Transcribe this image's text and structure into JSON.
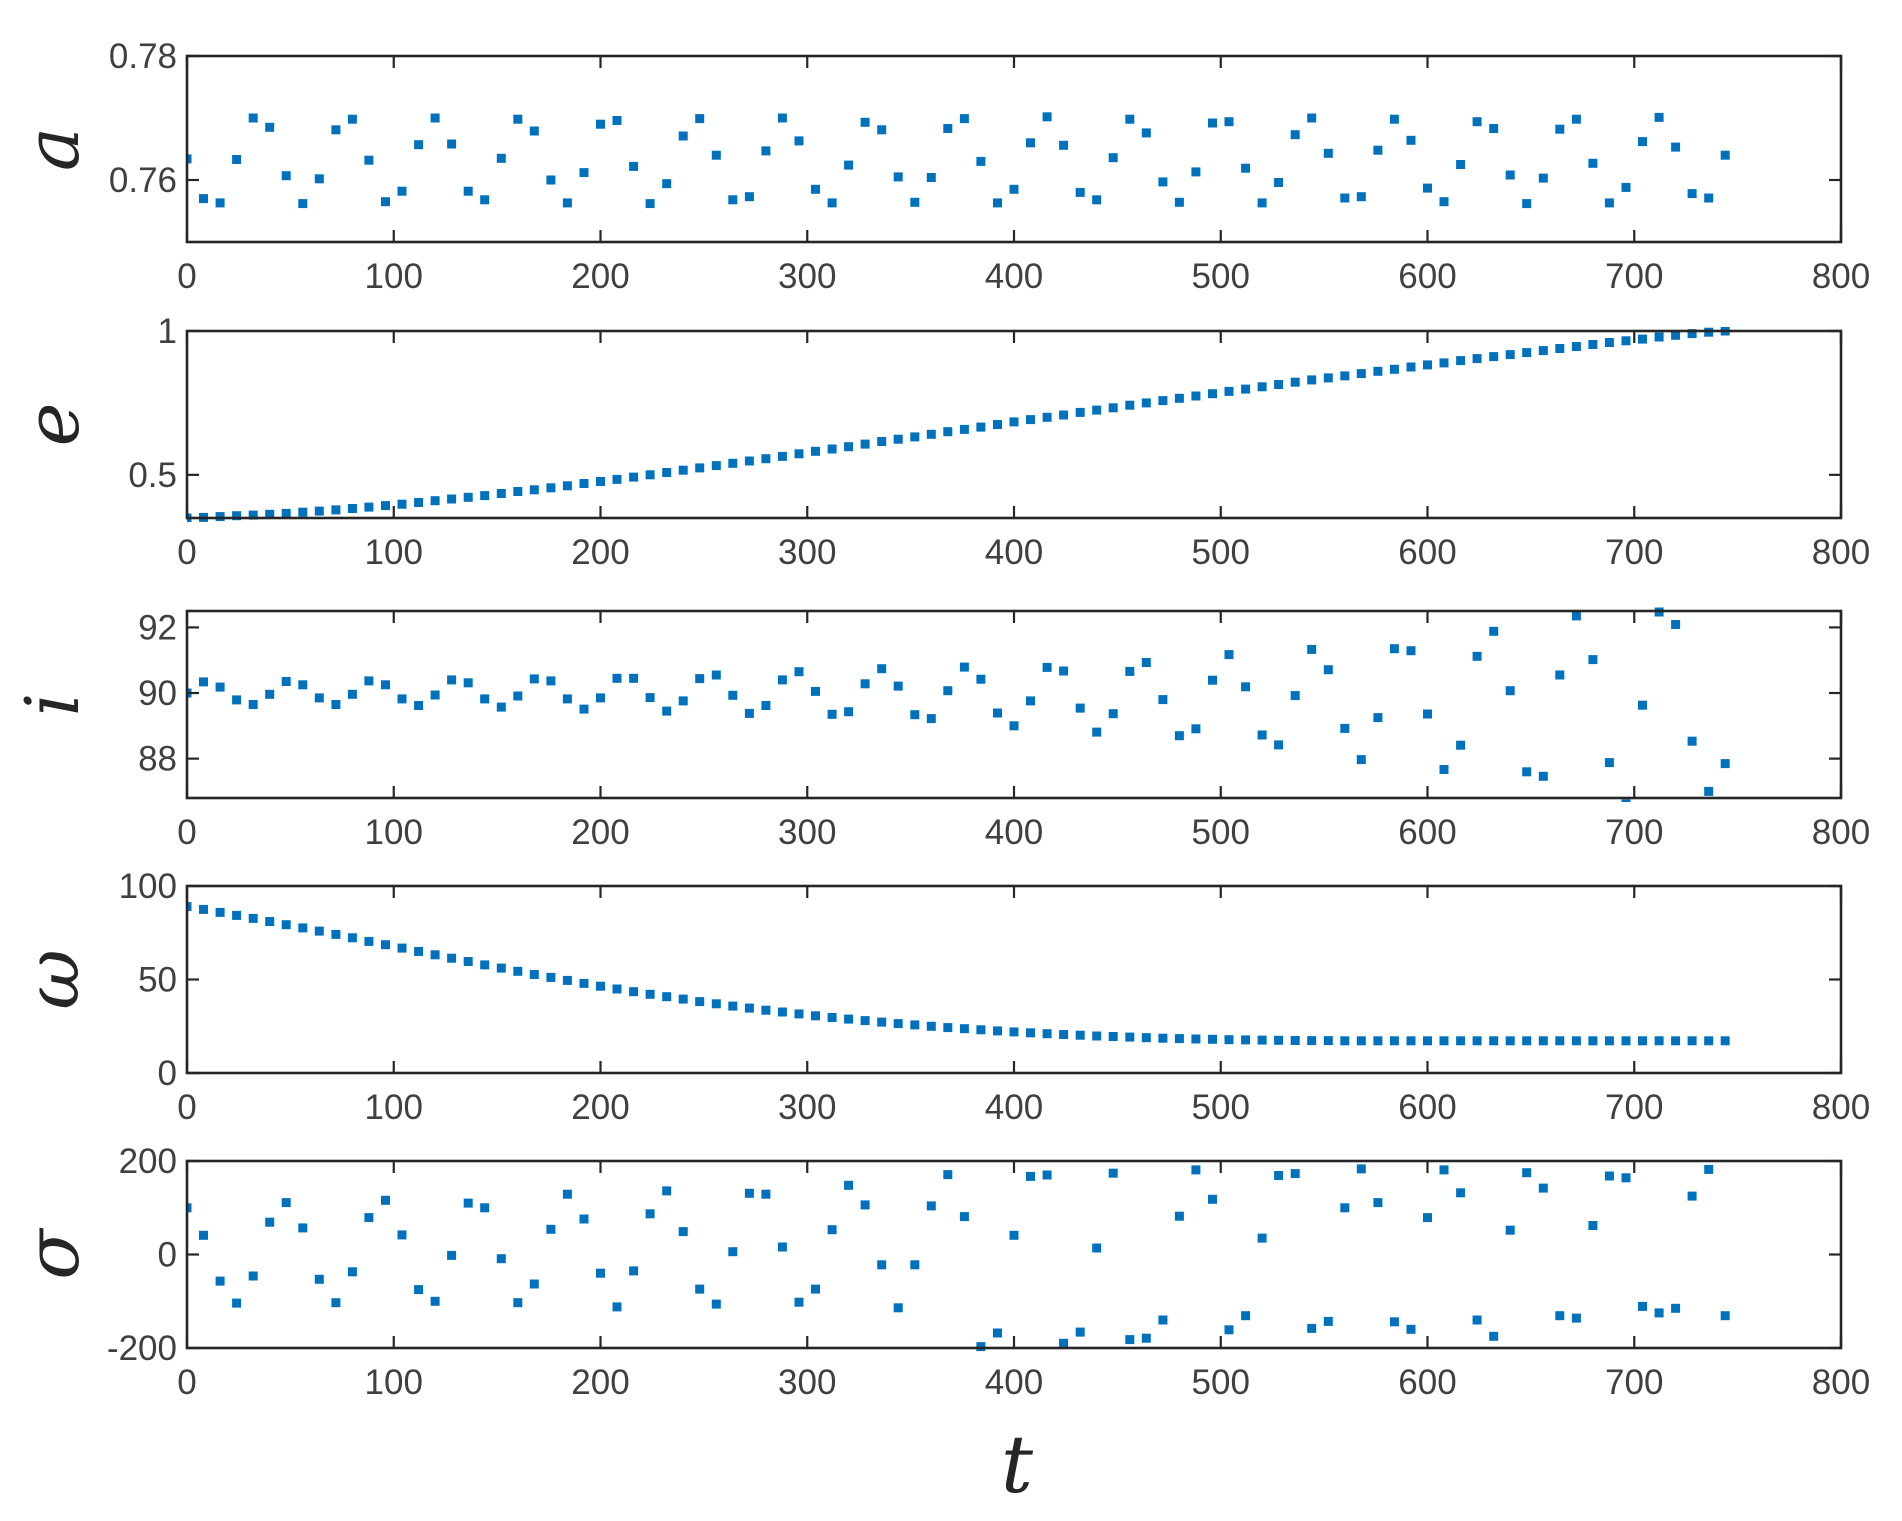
{
  "chart_data": [
    {
      "type": "scatter",
      "ylabel": "a",
      "xlim": [
        0,
        800
      ],
      "ylim": [
        0.75,
        0.78
      ],
      "xticks": [
        0,
        100,
        200,
        300,
        400,
        500,
        600,
        700,
        800
      ],
      "yticks": [
        0.76,
        0.78
      ],
      "ytick_labels": [
        "0.76",
        "0.78"
      ],
      "color": "#0072BD",
      "series": [
        {
          "x": [
            0,
            8,
            16,
            24,
            32,
            40,
            48,
            56,
            64,
            72,
            80,
            88,
            96,
            104,
            112,
            120,
            128,
            136,
            144,
            152,
            160,
            168,
            176,
            184,
            192,
            200,
            208,
            216,
            224,
            232,
            240,
            248,
            256,
            264,
            272,
            280,
            288,
            296,
            304,
            312,
            320,
            328,
            336,
            344,
            352,
            360,
            368,
            376,
            384,
            392,
            400,
            408,
            416,
            424,
            432,
            440,
            448,
            456,
            464,
            472,
            480,
            488,
            496,
            504,
            512,
            520,
            528,
            536,
            544,
            552,
            560,
            568,
            576,
            584,
            592,
            600,
            608,
            616,
            624,
            632,
            640,
            648,
            656,
            664,
            672,
            680,
            688,
            696,
            704,
            712,
            720,
            728,
            736,
            744
          ],
          "y": [
            0.7634,
            0.757,
            0.7563,
            0.7633,
            0.77,
            0.7685,
            0.7607,
            0.7562,
            0.7602,
            0.7681,
            0.7698,
            0.7632,
            0.7565,
            0.7582,
            0.7657,
            0.77,
            0.7658,
            0.7582,
            0.7568,
            0.7635,
            0.7698,
            0.7679,
            0.76,
            0.7563,
            0.7612,
            0.769,
            0.7696,
            0.7622,
            0.7562,
            0.7594,
            0.7671,
            0.7699,
            0.764,
            0.7568,
            0.7573,
            0.7647,
            0.77,
            0.7663,
            0.7585,
            0.7563,
            0.7624,
            0.7693,
            0.7681,
            0.7605,
            0.7564,
            0.7604,
            0.7683,
            0.7699,
            0.763,
            0.7563,
            0.7585,
            0.766,
            0.7702,
            0.7656,
            0.758,
            0.7568,
            0.7636,
            0.7698,
            0.7676,
            0.7597,
            0.7564,
            0.7613,
            0.7692,
            0.7694,
            0.7619,
            0.7563,
            0.7596,
            0.7673,
            0.77,
            0.7643,
            0.7571,
            0.7573,
            0.7648,
            0.7698,
            0.7664,
            0.7587,
            0.7565,
            0.7625,
            0.7694,
            0.7683,
            0.7608,
            0.7562,
            0.7603,
            0.7682,
            0.7698,
            0.7627,
            0.7563,
            0.7588,
            0.7662,
            0.7701,
            0.7653,
            0.7578,
            0.7571,
            0.764
          ]
        }
      ]
    },
    {
      "type": "scatter",
      "ylabel": "e",
      "xlim": [
        0,
        800
      ],
      "ylim": [
        0.35,
        1
      ],
      "xticks": [
        0,
        100,
        200,
        300,
        400,
        500,
        600,
        700,
        800
      ],
      "yticks": [
        0.5,
        1
      ],
      "ytick_labels": [
        "0.5",
        "1"
      ],
      "color": "#0072BD",
      "series": [
        {
          "x": [
            0,
            8,
            16,
            24,
            32,
            40,
            48,
            56,
            64,
            72,
            80,
            88,
            96,
            104,
            112,
            120,
            128,
            136,
            144,
            152,
            160,
            168,
            176,
            184,
            192,
            200,
            208,
            216,
            224,
            232,
            240,
            248,
            256,
            264,
            272,
            280,
            288,
            296,
            304,
            312,
            320,
            328,
            336,
            344,
            352,
            360,
            368,
            376,
            384,
            392,
            400,
            408,
            416,
            424,
            432,
            440,
            448,
            456,
            464,
            472,
            480,
            488,
            496,
            504,
            512,
            520,
            528,
            536,
            544,
            552,
            560,
            568,
            576,
            584,
            592,
            600,
            608,
            616,
            624,
            632,
            640,
            648,
            656,
            664,
            672,
            680,
            688,
            696,
            704,
            712,
            720,
            728,
            736,
            744
          ],
          "y": [
            0.35,
            0.352,
            0.355,
            0.358,
            0.36,
            0.363,
            0.366,
            0.37,
            0.374,
            0.378,
            0.383,
            0.388,
            0.393,
            0.398,
            0.404,
            0.41,
            0.416,
            0.422,
            0.428,
            0.435,
            0.442,
            0.448,
            0.455,
            0.462,
            0.47,
            0.477,
            0.484,
            0.492,
            0.5,
            0.508,
            0.516,
            0.524,
            0.532,
            0.54,
            0.548,
            0.556,
            0.564,
            0.573,
            0.582,
            0.59,
            0.598,
            0.607,
            0.616,
            0.624,
            0.632,
            0.641,
            0.65,
            0.658,
            0.666,
            0.675,
            0.684,
            0.692,
            0.7,
            0.708,
            0.717,
            0.725,
            0.733,
            0.742,
            0.75,
            0.758,
            0.766,
            0.774,
            0.782,
            0.79,
            0.798,
            0.806,
            0.814,
            0.822,
            0.83,
            0.837,
            0.844,
            0.852,
            0.86,
            0.867,
            0.875,
            0.882,
            0.889,
            0.897,
            0.904,
            0.911,
            0.918,
            0.925,
            0.932,
            0.939,
            0.946,
            0.953,
            0.96,
            0.966,
            0.972,
            0.979,
            0.985,
            0.991,
            0.996,
            1.0
          ]
        }
      ]
    },
    {
      "type": "scatter",
      "ylabel": "i",
      "xlim": [
        0,
        800
      ],
      "ylim": [
        86.8,
        92.5
      ],
      "xticks": [
        0,
        100,
        200,
        300,
        400,
        500,
        600,
        700,
        800
      ],
      "yticks": [
        88,
        90,
        92
      ],
      "ytick_labels": [
        "88",
        "90",
        "92"
      ],
      "color": "#0072BD",
      "series": [
        {
          "x": [
            0,
            8,
            16,
            24,
            32,
            40,
            48,
            56,
            64,
            72,
            80,
            88,
            96,
            104,
            112,
            120,
            128,
            136,
            144,
            152,
            160,
            168,
            176,
            184,
            192,
            200,
            208,
            216,
            224,
            232,
            240,
            248,
            256,
            264,
            272,
            280,
            288,
            296,
            304,
            312,
            320,
            328,
            336,
            344,
            352,
            360,
            368,
            376,
            384,
            392,
            400,
            408,
            416,
            424,
            432,
            440,
            448,
            456,
            464,
            472,
            480,
            488,
            496,
            504,
            512,
            520,
            528,
            536,
            544,
            552,
            560,
            568,
            576,
            584,
            592,
            600,
            608,
            616,
            624,
            632,
            640,
            648,
            656,
            664,
            672,
            680,
            688,
            696,
            704,
            712,
            720,
            728,
            736,
            744
          ],
          "y": [
            90.0,
            90.34,
            90.18,
            89.79,
            89.65,
            89.96,
            90.35,
            90.25,
            89.85,
            89.65,
            89.96,
            90.37,
            90.25,
            89.82,
            89.62,
            89.94,
            90.4,
            90.31,
            89.82,
            89.57,
            89.91,
            90.43,
            90.37,
            89.82,
            89.51,
            89.85,
            90.45,
            90.45,
            89.86,
            89.45,
            89.76,
            90.44,
            90.55,
            89.93,
            89.38,
            89.62,
            90.4,
            90.65,
            90.05,
            89.35,
            89.43,
            90.28,
            90.74,
            90.21,
            89.34,
            89.22,
            90.07,
            90.79,
            90.42,
            89.39,
            89.0,
            89.76,
            90.78,
            90.67,
            89.54,
            88.81,
            89.37,
            90.66,
            90.93,
            89.8,
            88.7,
            88.91,
            90.39,
            91.17,
            90.19,
            88.72,
            88.42,
            89.92,
            91.33,
            90.71,
            88.92,
            87.97,
            89.25,
            91.35,
            91.29,
            89.36,
            87.67,
            88.41,
            91.12,
            91.88,
            90.07,
            87.6,
            87.46,
            90.55,
            92.35,
            91.02,
            87.88,
            86.62,
            89.63,
            92.47,
            92.09,
            88.53,
            87.0,
            87.85
          ]
        }
      ]
    },
    {
      "type": "scatter",
      "ylabel": "ω",
      "xlim": [
        0,
        800
      ],
      "ylim": [
        0,
        100
      ],
      "xticks": [
        0,
        100,
        200,
        300,
        400,
        500,
        600,
        700,
        800
      ],
      "yticks": [
        0,
        50,
        100
      ],
      "ytick_labels": [
        "0",
        "50",
        "100"
      ],
      "color": "#0072BD",
      "series": [
        {
          "x": [
            0,
            8,
            16,
            24,
            32,
            40,
            48,
            56,
            64,
            72,
            80,
            88,
            96,
            104,
            112,
            120,
            128,
            136,
            144,
            152,
            160,
            168,
            176,
            184,
            192,
            200,
            208,
            216,
            224,
            232,
            240,
            248,
            256,
            264,
            272,
            280,
            288,
            296,
            304,
            312,
            320,
            328,
            336,
            344,
            352,
            360,
            368,
            376,
            384,
            392,
            400,
            408,
            416,
            424,
            432,
            440,
            448,
            456,
            464,
            472,
            480,
            488,
            496,
            504,
            512,
            520,
            528,
            536,
            544,
            552,
            560,
            568,
            576,
            584,
            592,
            600,
            608,
            616,
            624,
            632,
            640,
            648,
            656,
            664,
            672,
            680,
            688,
            696,
            704,
            712,
            720,
            728,
            736,
            744
          ],
          "y": [
            89.0,
            87.5,
            85.9,
            84.3,
            82.7,
            81.0,
            79.3,
            77.6,
            75.9,
            74.1,
            72.3,
            70.4,
            68.6,
            66.8,
            65.0,
            63.2,
            61.4,
            59.6,
            57.8,
            56.1,
            54.4,
            52.7,
            51.1,
            49.5,
            47.9,
            46.4,
            44.9,
            43.5,
            42.1,
            40.8,
            39.5,
            38.2,
            37.0,
            35.8,
            34.7,
            33.6,
            32.6,
            31.6,
            30.6,
            29.7,
            28.8,
            28.0,
            27.2,
            26.4,
            25.7,
            25.0,
            24.3,
            23.7,
            23.1,
            22.5,
            22.0,
            21.5,
            21.0,
            20.6,
            20.2,
            19.8,
            19.5,
            19.2,
            18.9,
            18.6,
            18.4,
            18.2,
            18.0,
            17.8,
            17.7,
            17.6,
            17.5,
            17.4,
            17.3,
            17.3,
            17.2,
            17.2,
            17.2,
            17.2,
            17.2,
            17.2,
            17.2,
            17.2,
            17.2,
            17.2,
            17.2,
            17.2,
            17.2,
            17.2,
            17.2,
            17.2,
            17.2,
            17.2,
            17.2,
            17.2,
            17.2,
            17.2,
            17.2,
            17.2
          ]
        }
      ]
    },
    {
      "type": "scatter",
      "ylabel": "σ",
      "xlabel": "t",
      "xlim": [
        0,
        800
      ],
      "ylim": [
        -200,
        200
      ],
      "xticks": [
        0,
        100,
        200,
        300,
        400,
        500,
        600,
        700,
        800
      ],
      "yticks": [
        -200,
        0,
        200
      ],
      "ytick_labels": [
        "-200",
        "0",
        "200"
      ],
      "color": "#0072BD",
      "series": [
        {
          "x": [
            0,
            8,
            16,
            24,
            32,
            40,
            48,
            56,
            64,
            72,
            80,
            88,
            96,
            104,
            112,
            120,
            128,
            136,
            144,
            152,
            160,
            168,
            176,
            184,
            192,
            200,
            208,
            216,
            224,
            232,
            240,
            248,
            256,
            264,
            272,
            280,
            288,
            296,
            304,
            312,
            320,
            328,
            336,
            344,
            352,
            360,
            368,
            376,
            384,
            392,
            400,
            408,
            416,
            424,
            432,
            440,
            448,
            456,
            464,
            472,
            480,
            488,
            496,
            504,
            512,
            520,
            528,
            536,
            544,
            552,
            560,
            568,
            576,
            584,
            592,
            600,
            608,
            616,
            624,
            632,
            640,
            648,
            656,
            664,
            672,
            680,
            688,
            696,
            704,
            712,
            720,
            728,
            736,
            744
          ],
          "y": [
            100,
            41,
            -57,
            -104,
            -46,
            69,
            111,
            57,
            -53,
            -103,
            -37,
            79,
            116,
            42,
            -75,
            -100,
            -2,
            110,
            100,
            -9,
            -103,
            -63,
            54,
            129,
            76,
            -40,
            -112,
            -35,
            87,
            136,
            49,
            -74,
            -106,
            6,
            131,
            129,
            16,
            -102,
            -74,
            53,
            148,
            106,
            -22,
            -114,
            -22,
            104,
            171,
            81,
            -197,
            -168,
            41,
            167,
            170,
            -190,
            -166,
            14,
            174,
            -182,
            -179,
            -140,
            82,
            181,
            118,
            -161,
            -131,
            35,
            169,
            173,
            -158,
            -143,
            100,
            183,
            111,
            -144,
            -160,
            79,
            181,
            132,
            -140,
            -175,
            52,
            175,
            142,
            -131,
            -136,
            62,
            168,
            164,
            -111,
            -125,
            -115,
            125,
            182,
            -131
          ]
        }
      ]
    }
  ]
}
